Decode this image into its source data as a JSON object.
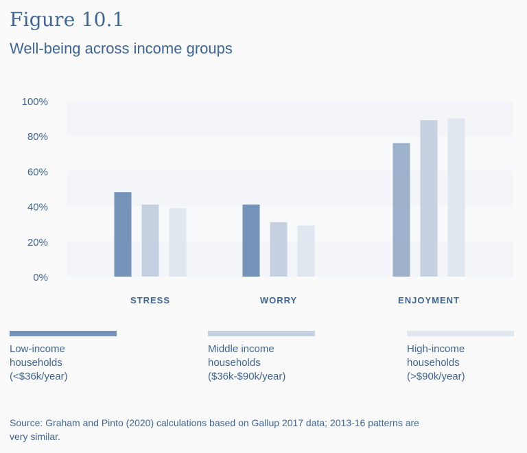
{
  "figure": {
    "label": "Figure 10.1",
    "title": "Well-being across income groups"
  },
  "chart_data": {
    "type": "bar",
    "categories": [
      "STRESS",
      "WORRY",
      "ENJOYMENT"
    ],
    "series": [
      {
        "name": "Low-income households (<$36k/year)",
        "values": [
          48,
          41,
          76
        ],
        "color": "#7593b8"
      },
      {
        "name": "Middle income households ($36k-$90k/year)",
        "values": [
          41,
          31,
          89
        ],
        "color": "#c5d0e0"
      },
      {
        "name": "High-income households (>$90k/year)",
        "values": [
          39,
          29,
          90
        ],
        "color": "#e1e7ef"
      }
    ],
    "enjoyment_low_color": "#9eb1ca",
    "y_ticks": [
      "0%",
      "20%",
      "40%",
      "60%",
      "80%",
      "100%"
    ],
    "ylim": [
      0,
      100
    ],
    "grid": true,
    "legend_placement": "bottom"
  },
  "legend": [
    {
      "line1": "Low-income",
      "line2": "households",
      "line3": "(<$36k/year)",
      "color": "#7593b8"
    },
    {
      "line1": "Middle income",
      "line2": "households",
      "line3": "($36k-$90k/year)",
      "color": "#c5d0e0"
    },
    {
      "line1": "High-income",
      "line2": "households",
      "line3": "(>$90k/year)",
      "color": "#e1e7ef"
    }
  ],
  "source": "Source: Graham and Pinto (2020) calculations based on Gallup 2017 data; 2013-16 patterns are very similar."
}
